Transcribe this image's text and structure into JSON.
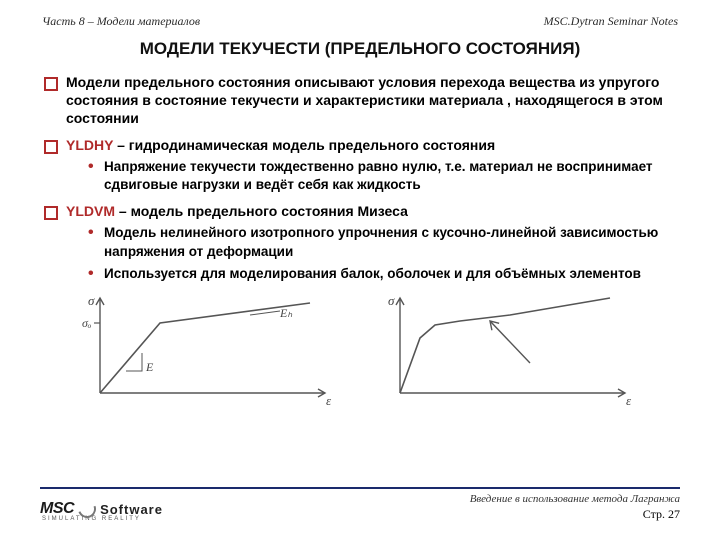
{
  "header": {
    "left": "Часть 8 – Модели материалов",
    "right": "MSC.Dytran Seminar Notes"
  },
  "title": "МОДЕЛИ ТЕКУЧЕСТИ (ПРЕДЕЛЬНОГО СОСТОЯНИЯ)",
  "bullets": [
    {
      "text": "Модели предельного состояния описывают условия перехода вещества из упругого состояния в состояние текучести и характеристики материала , находящегося в этом состоянии"
    },
    {
      "keyword": "YLDHY",
      "text": " – гидродинамическая модель предельного состояния",
      "sub": [
        "Напряжение текучести тождественно равно нулю, т.е. материал не воспринимает сдвиговые нагрузки и ведёт себя как жидкость"
      ]
    },
    {
      "keyword": "YLDVM",
      "text": " – модель предельного состояния Мизеса",
      "sub": [
        "Модель нелинейного изотропного упрочнения с кусочно-линейной зависимостью напряжения от деформации",
        "Используется для моделирования балок, оболочек и для объёмных элементов"
      ]
    }
  ],
  "chart_left": {
    "type": "line",
    "y_axis_label": "σ",
    "x_axis_label": "ε",
    "sigma0_label": "σₒ",
    "E_label": "E",
    "Eh_label": "Eₕ",
    "axis_color": "#555555",
    "poly": [
      [
        20,
        100
      ],
      [
        80,
        30
      ],
      [
        230,
        10
      ]
    ],
    "sigma0_tick_y": 30,
    "E_tri": [
      [
        46,
        78
      ],
      [
        62,
        78
      ],
      [
        62,
        60
      ]
    ],
    "Eh_line": [
      [
        170,
        22
      ],
      [
        200,
        18
      ]
    ]
  },
  "chart_right": {
    "type": "line",
    "y_axis_label": "σ",
    "x_axis_label": "ε",
    "axis_color": "#555555",
    "poly": [
      [
        20,
        100
      ],
      [
        40,
        45
      ],
      [
        55,
        32
      ],
      [
        80,
        28
      ],
      [
        130,
        22
      ],
      [
        230,
        5
      ]
    ],
    "arrow_from": [
      150,
      70
    ],
    "arrow_to": [
      110,
      28
    ]
  },
  "footer": {
    "logo_msc": "MSC",
    "logo_soft": "Software",
    "logo_sub": "SIMULATING  REALITY",
    "note": "Введение в использование метода Лагранжа",
    "page_prefix": "Стр. ",
    "page_number": "27"
  },
  "colors": {
    "accent_red": "#b02a2a",
    "rule_blue": "#1a2a6c",
    "bg": "#ffffff",
    "text": "#000000"
  }
}
